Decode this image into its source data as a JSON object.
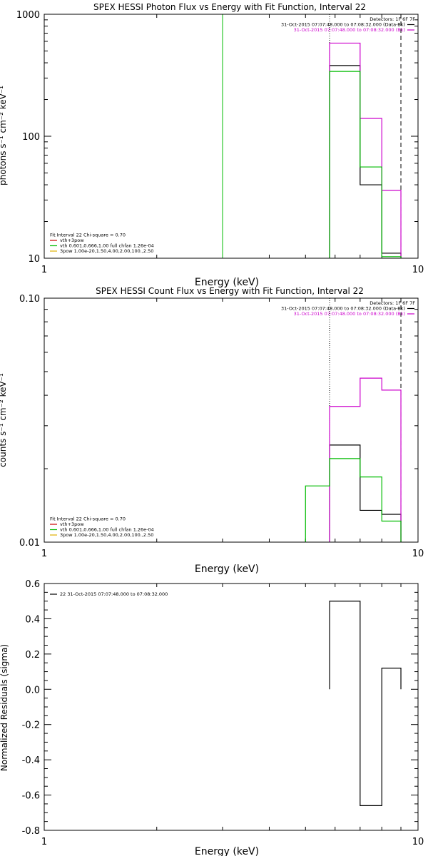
{
  "chart_data": [
    {
      "id": "photon",
      "type": "line",
      "title": "SPEX HESSI Photon Flux vs Energy with Fit Function, Interval 22",
      "xlabel": "Energy (keV)",
      "ylabel": "photons s⁻¹ cm⁻² keV⁻¹",
      "xscale": "log",
      "yscale": "log",
      "xlim": [
        1,
        10
      ],
      "ylim": [
        10,
        1000
      ],
      "x_ticks": [
        "1",
        "10"
      ],
      "y_ticks": [
        "10",
        "100",
        "1000"
      ],
      "header": [
        {
          "text": "Detectors: 1F 6F 7F",
          "color": "#000000"
        },
        {
          "text": "31-Oct-2015 07:07:48.000 to 07:08:32.000 (Data-Bk)",
          "color": "#000000"
        },
        {
          "text": "31-Oct-2015 07:07:48.000 to 07:08:32.000 (Bk)",
          "color": "#cc00cc"
        }
      ],
      "legend": [
        {
          "text": "Fit Interval 22   Chi-square = 0.70",
          "color": "#000000"
        },
        {
          "text": "vth+3pow",
          "color": "#cc0000"
        },
        {
          "text": "vth 0.601,0.666,1.00  full chfan 1.26e-04",
          "color": "#00bb00"
        },
        {
          "text": "3pow 1.00e-20,1.50,4.00,2.00,100.,2.50",
          "color": "#e0b000"
        }
      ],
      "vlines": [
        {
          "x": 3.0,
          "color": "#00bb00",
          "style": "solid"
        },
        {
          "x": 5.8,
          "color": "#000000",
          "style": "dotted"
        },
        {
          "x": 9.0,
          "color": "#000000",
          "style": "dashed"
        }
      ],
      "series": [
        {
          "name": "Data-Bk",
          "color": "#000000",
          "type": "step",
          "bins": [
            5.8,
            7.0,
            8.0,
            9.0
          ],
          "values": [
            380,
            40,
            11
          ]
        },
        {
          "name": "Bk",
          "color": "#cc00cc",
          "type": "step",
          "bins": [
            5.8,
            7.0,
            8.0,
            9.0
          ],
          "values": [
            580,
            140,
            36
          ]
        },
        {
          "name": "vth+3pow",
          "color": "#00bb00",
          "type": "step",
          "bins": [
            5.8,
            7.0,
            8.0,
            9.0
          ],
          "values": [
            340,
            56,
            10.3
          ]
        }
      ]
    },
    {
      "id": "count",
      "type": "line",
      "title": "SPEX HESSI Count Flux vs Energy with Fit Function, Interval 22",
      "xlabel": "Energy (keV)",
      "ylabel": "counts s⁻¹ cm⁻² keV⁻¹",
      "xscale": "log",
      "yscale": "log",
      "xlim": [
        1,
        10
      ],
      "ylim": [
        0.01,
        0.1
      ],
      "x_ticks": [
        "1",
        "10"
      ],
      "y_ticks": [
        "0.01",
        "0.10"
      ],
      "header": [
        {
          "text": "Detectors: 1F 6F 7F",
          "color": "#000000"
        },
        {
          "text": "31-Oct-2015 07:07:48.000 to 07:08:32.000 (Data-Bk)",
          "color": "#000000"
        },
        {
          "text": "31-Oct-2015 07:07:48.000 to 07:08:32.000 (Bk)",
          "color": "#cc00cc"
        }
      ],
      "legend": [
        {
          "text": "Fit Interval 22   Chi-square = 0.70",
          "color": "#000000"
        },
        {
          "text": "vth+3pow",
          "color": "#cc0000"
        },
        {
          "text": "vth 0.601,0.666,1.00  full chfan 1.26e-04",
          "color": "#00bb00"
        },
        {
          "text": "3pow 1.00e-20,1.50,4.00,2.00,100.,2.50",
          "color": "#e0b000"
        }
      ],
      "vlines": [
        {
          "x": 5.8,
          "color": "#000000",
          "style": "dotted"
        },
        {
          "x": 9.0,
          "color": "#000000",
          "style": "dashed"
        }
      ],
      "series": [
        {
          "name": "Data-Bk",
          "color": "#000000",
          "type": "step",
          "bins": [
            5.8,
            7.0,
            8.0,
            9.0
          ],
          "values": [
            0.025,
            0.0135,
            0.013
          ]
        },
        {
          "name": "Bk",
          "color": "#cc00cc",
          "type": "step",
          "bins": [
            5.8,
            7.0,
            8.0,
            9.0
          ],
          "values": [
            0.036,
            0.047,
            0.042
          ]
        },
        {
          "name": "vth+3pow",
          "color": "#00bb00",
          "type": "step",
          "bins": [
            5.0,
            5.8,
            7.0,
            8.0,
            9.0
          ],
          "values": [
            0.017,
            0.022,
            0.0185,
            0.0122
          ]
        }
      ]
    },
    {
      "id": "resid",
      "type": "line",
      "title": "",
      "xlabel": "Energy (keV)",
      "ylabel": "Normalized Residuals (sigma)",
      "xscale": "log",
      "yscale": "linear",
      "xlim": [
        1,
        10
      ],
      "ylim": [
        -0.8,
        0.6
      ],
      "x_ticks": [
        "1",
        "10"
      ],
      "y_ticks": [
        "-0.8",
        "-0.6",
        "-0.4",
        "-0.2",
        "0.0",
        "0.2",
        "0.4",
        "0.6"
      ],
      "header": [],
      "legend": [
        {
          "text": "22  31-Oct-2015 07:07:48.000 to 07:08:32.000",
          "color": "#000000"
        }
      ],
      "vlines": [],
      "series": [
        {
          "name": "22",
          "color": "#000000",
          "type": "residual",
          "bins": [
            5.8,
            7.0,
            8.0,
            9.0
          ],
          "values": [
            0.5,
            -0.66,
            0.12
          ]
        }
      ]
    }
  ]
}
